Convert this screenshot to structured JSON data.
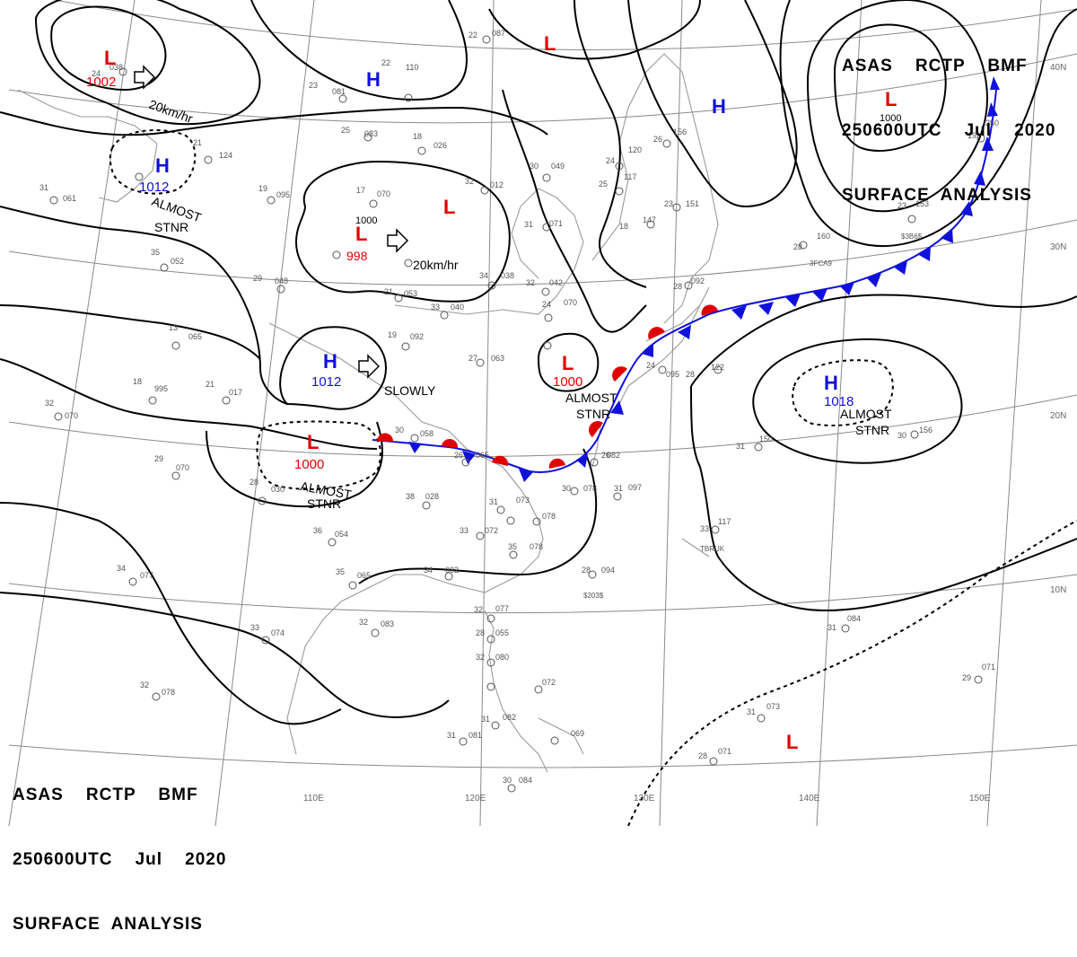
{
  "header": {
    "line1": "ASAS    RCTP    BMF",
    "line2": "250600UTC    Jul    2020",
    "line3": "SURFACE  ANALYSIS"
  },
  "colors": {
    "high": "#1010dd",
    "low": "#e00000",
    "cold_front": "#1010dd",
    "warm_front": "#e00000",
    "isobar": "#000000",
    "grid": "#8a8a8a"
  },
  "lat_labels": [
    "40N",
    "30N",
    "20N",
    "10N"
  ],
  "lon_labels": [
    "110E",
    "120E",
    "130E",
    "140E",
    "150E"
  ],
  "pressure_centers": [
    {
      "type": "L",
      "value": "1002"
    },
    {
      "type": "H",
      "value": "1012"
    },
    {
      "type": "H",
      "value": ""
    },
    {
      "type": "L",
      "value": ""
    },
    {
      "type": "L",
      "value": ""
    },
    {
      "type": "L",
      "value": "998"
    },
    {
      "type": "H",
      "value": ""
    },
    {
      "type": "L",
      "value": "1000"
    },
    {
      "type": "H",
      "value": "1012"
    },
    {
      "type": "L",
      "value": "1000"
    },
    {
      "type": "L",
      "value": "1000"
    },
    {
      "type": "H",
      "value": "1018"
    },
    {
      "type": "L",
      "value": ""
    }
  ],
  "isobar_labels": [
    "1000",
    "1000"
  ],
  "movements": [
    "20km/hr",
    "20km/hr",
    "SLOWLY"
  ],
  "motion_labels": [
    "ALMOST",
    "STNR",
    "ALMOST",
    "STNR",
    "ALMOST",
    "STNR",
    "ALMOST",
    "STNR"
  ],
  "ship_labels": [
    "3FCA9",
    "$3B6$",
    "$203$",
    "TBRUK"
  ]
}
